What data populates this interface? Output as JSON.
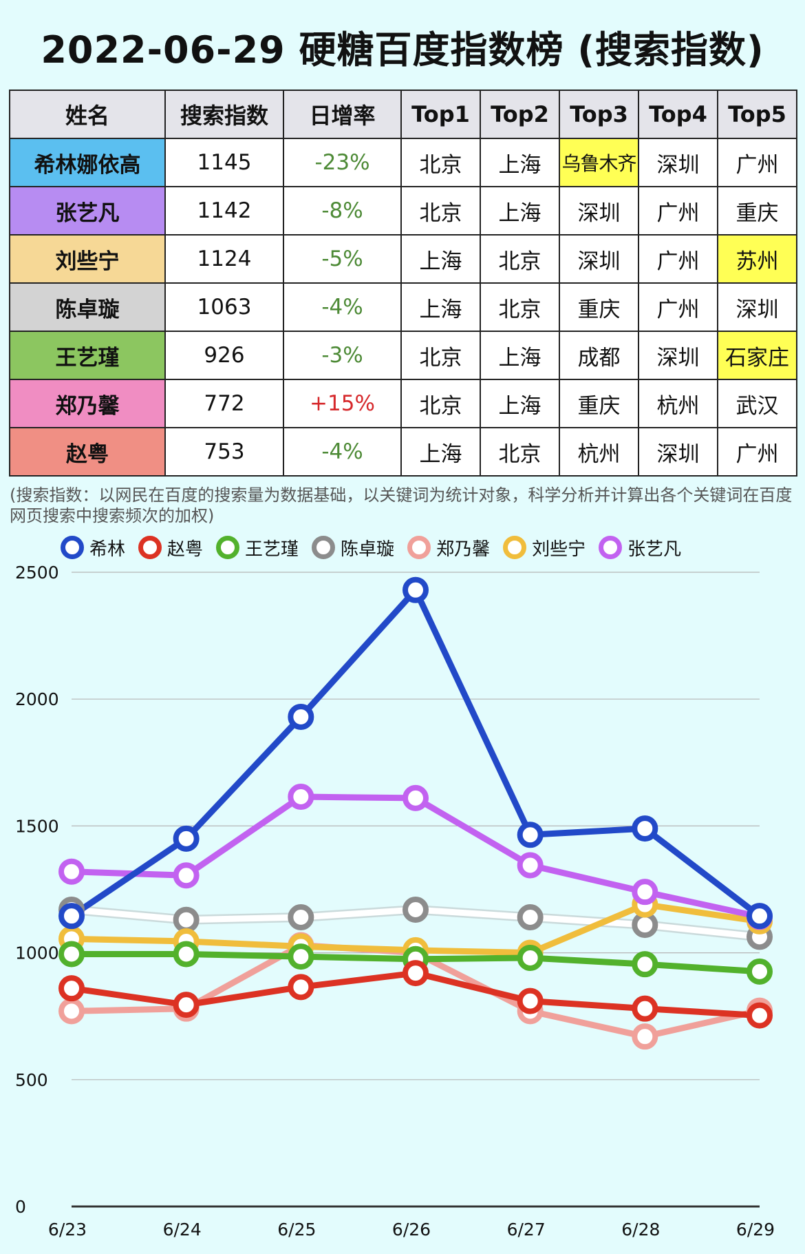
{
  "title": "2022-06-29 硬糖百度指数榜 (搜索指数)",
  "table": {
    "headers": [
      "姓名",
      "搜索指数",
      "日增率",
      "Top1",
      "Top2",
      "Top3",
      "Top4",
      "Top5"
    ],
    "rows": [
      {
        "name": "希林娜依高",
        "index": "1145",
        "rate": "-23%",
        "cities": [
          "北京",
          "上海",
          "乌鲁木齐",
          "深圳",
          "广州"
        ],
        "color": "#5bbff0"
      },
      {
        "name": "张艺凡",
        "index": "1142",
        "rate": "-8%",
        "cities": [
          "北京",
          "上海",
          "深圳",
          "广州",
          "重庆"
        ],
        "color": "#b78cf2"
      },
      {
        "name": "刘些宁",
        "index": "1124",
        "rate": "-5%",
        "cities": [
          "上海",
          "北京",
          "深圳",
          "广州",
          "苏州"
        ],
        "color": "#f6d896"
      },
      {
        "name": "陈卓璇",
        "index": "1063",
        "rate": "-4%",
        "cities": [
          "上海",
          "北京",
          "重庆",
          "广州",
          "深圳"
        ],
        "color": "#d3d3d3"
      },
      {
        "name": "王艺瑾",
        "index": "926",
        "rate": "-3%",
        "cities": [
          "北京",
          "上海",
          "成都",
          "深圳",
          "石家庄"
        ],
        "color": "#8cc660"
      },
      {
        "name": "郑乃馨",
        "index": "772",
        "rate": "+15%",
        "cities": [
          "北京",
          "上海",
          "重庆",
          "杭州",
          "武汉"
        ],
        "color": "#f08dc2"
      },
      {
        "name": "赵粤",
        "index": "753",
        "rate": "-4%",
        "cities": [
          "上海",
          "北京",
          "杭州",
          "深圳",
          "广州"
        ],
        "color": "#f08f84"
      }
    ]
  },
  "note": "(搜索指数：以网民在百度的搜索量为数据基础，以关键词为统计对象，科学分析并计算出各个关键词在百度网页搜索中搜索频次的加权)",
  "chart_data": {
    "type": "line",
    "x": [
      "6/23",
      "6/24",
      "6/25",
      "6/26",
      "6/27",
      "6/28",
      "6/29"
    ],
    "ylim": [
      0,
      2500
    ],
    "yticks": [
      0,
      500,
      1000,
      1500,
      2000,
      2500
    ],
    "grid": true,
    "legend_position": "top",
    "series": [
      {
        "name": "希林",
        "color": "#2249c8",
        "values": [
          1145,
          1450,
          1930,
          2430,
          1465,
          1490,
          1145
        ]
      },
      {
        "name": "赵粤",
        "color": "#dc3223",
        "values": [
          860,
          795,
          865,
          920,
          810,
          780,
          753
        ]
      },
      {
        "name": "王艺瑾",
        "color": "#52b12c",
        "values": [
          995,
          995,
          985,
          975,
          980,
          955,
          926
        ]
      },
      {
        "name": "陈卓璇",
        "color": "#8c8c8c",
        "line_color": "#ffffff",
        "values": [
          1170,
          1130,
          1140,
          1170,
          1140,
          1110,
          1063
        ]
      },
      {
        "name": "郑乃馨",
        "color": "#f0a09a",
        "values": [
          770,
          780,
          1030,
          1000,
          770,
          670,
          772
        ]
      },
      {
        "name": "刘些宁",
        "color": "#f0bd3c",
        "values": [
          1055,
          1045,
          1025,
          1010,
          1000,
          1190,
          1124
        ]
      },
      {
        "name": "张艺凡",
        "color": "#c262f0",
        "values": [
          1320,
          1305,
          1615,
          1610,
          1345,
          1240,
          1142
        ]
      }
    ]
  }
}
